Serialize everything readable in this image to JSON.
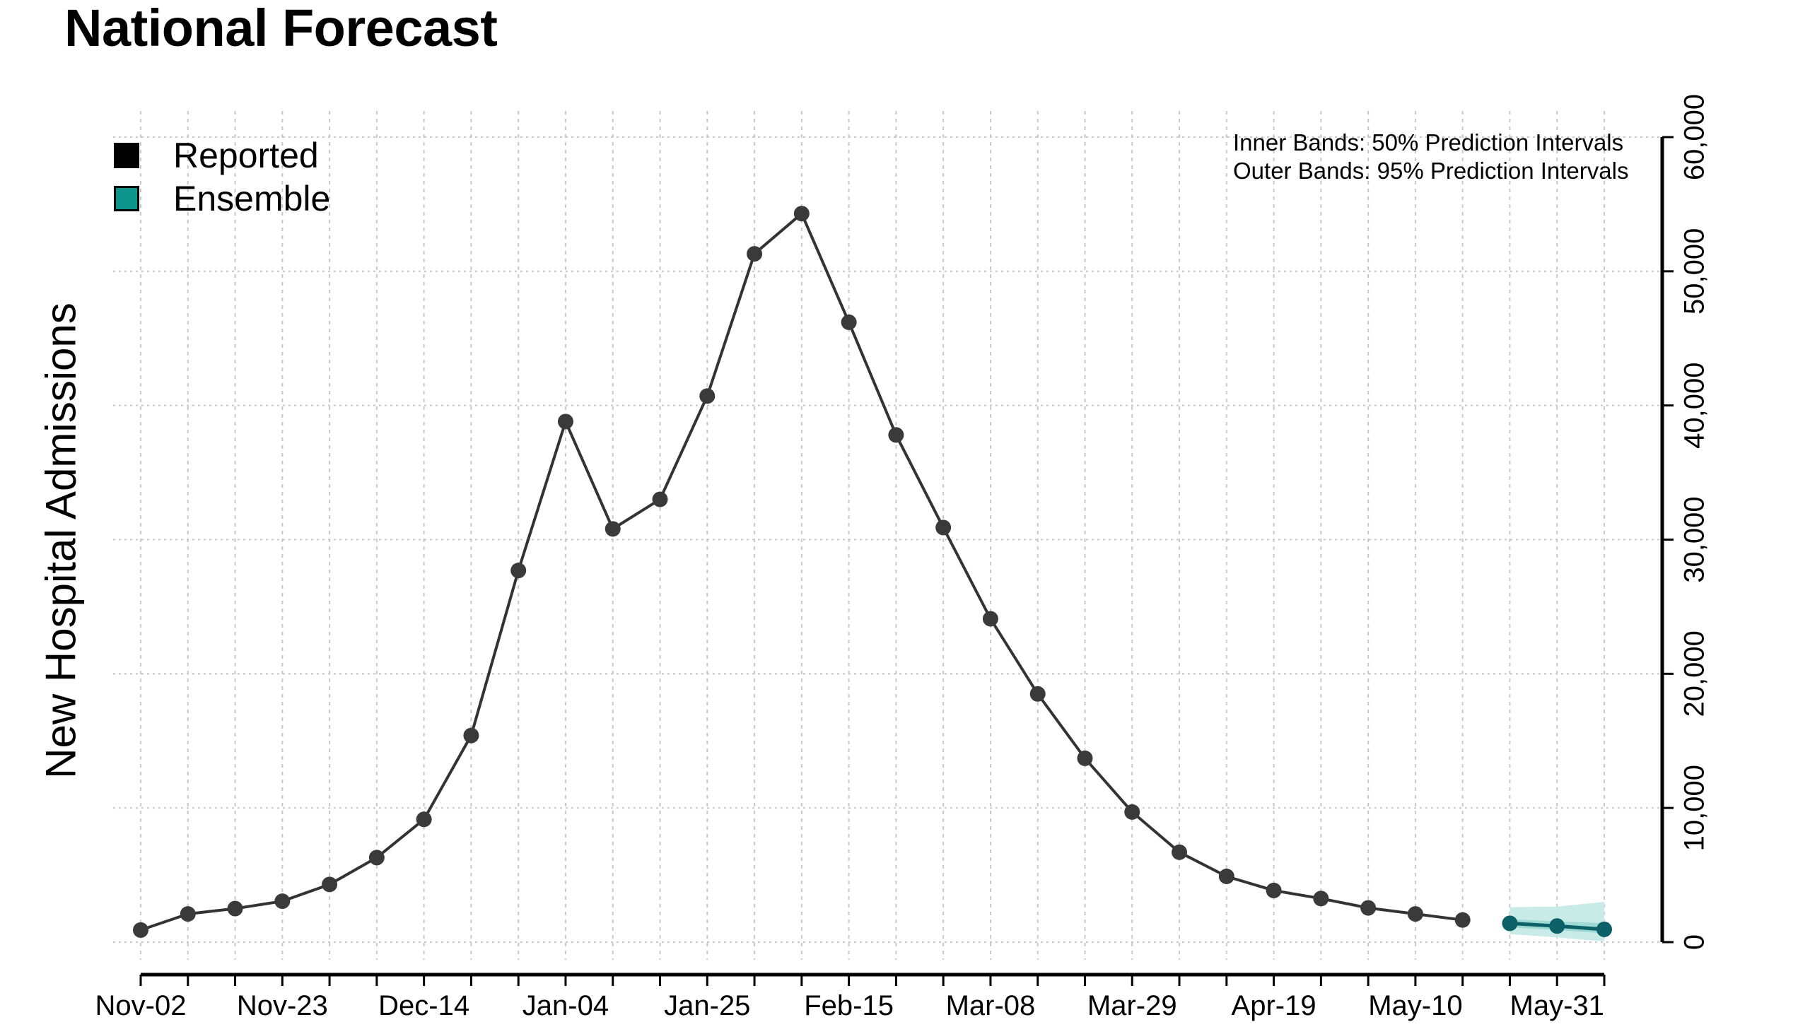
{
  "title": "National Forecast",
  "legend": [
    {
      "label": "Reported",
      "color": "#000000"
    },
    {
      "label": "Ensemble",
      "color": "#0f968c"
    }
  ],
  "annotations": {
    "inner": "Inner Bands: 50% Prediction Intervals",
    "outer": "Outer Bands: 95% Prediction Intervals"
  },
  "colors": {
    "reported_line": "#333333",
    "reported_point": "#3a3a3a",
    "ensemble_line": "#0b6167",
    "ensemble_point": "#0b6167",
    "band_95": "#c8ebe8",
    "band_50": "#9fd9d3",
    "grid": "#c8c8c8"
  },
  "chart_data": {
    "type": "line",
    "title": "National Forecast",
    "xlabel": "",
    "ylabel": "New Hospital Admissions",
    "ylim": [
      0,
      60000
    ],
    "yticks": [
      0,
      10000,
      20000,
      30000,
      40000,
      50000,
      60000
    ],
    "ytick_labels": [
      "0",
      "10,000",
      "20,000",
      "30,000",
      "40,000",
      "50,000",
      "60,000"
    ],
    "y_axis_position": "right",
    "grid": true,
    "legend_position": "top-left",
    "x": [
      "Nov-02",
      "Nov-09",
      "Nov-16",
      "Nov-23",
      "Nov-30",
      "Dec-07",
      "Dec-14",
      "Dec-21",
      "Dec-28",
      "Jan-04",
      "Jan-11",
      "Jan-18",
      "Jan-25",
      "Feb-01",
      "Feb-08",
      "Feb-15",
      "Feb-22",
      "Mar-01",
      "Mar-08",
      "Mar-15",
      "Mar-22",
      "Mar-29",
      "Apr-05",
      "Apr-12",
      "Apr-19",
      "Apr-26",
      "May-03",
      "May-10",
      "May-17",
      "May-24",
      "May-31",
      "Jun-07"
    ],
    "xtick_labels": [
      "Nov-02",
      "",
      "",
      "Nov-23",
      "",
      "",
      "Dec-14",
      "",
      "",
      "Jan-04",
      "",
      "",
      "Jan-25",
      "",
      "",
      "Feb-15",
      "",
      "",
      "Mar-08",
      "",
      "",
      "Mar-29",
      "",
      "",
      "Apr-19",
      "",
      "",
      "May-10",
      "",
      "",
      "May-31",
      ""
    ],
    "series": [
      {
        "name": "Reported",
        "start_index": 0,
        "values": [
          900,
          2100,
          2500,
          3050,
          4300,
          6300,
          9150,
          15400,
          27700,
          38800,
          30800,
          33000,
          40700,
          51300,
          54300,
          46200,
          37800,
          30900,
          24100,
          18500,
          13700,
          9700,
          6700,
          4900,
          3850,
          3250,
          2550,
          2100,
          1650
        ]
      },
      {
        "name": "Ensemble",
        "start_index": 29,
        "values": [
          1400,
          1200,
          950
        ],
        "lower_50": [
          1100,
          900,
          650
        ],
        "upper_50": [
          1700,
          1550,
          1400
        ],
        "lower_95": [
          600,
          350,
          50
        ],
        "upper_95": [
          2600,
          2650,
          3000
        ]
      }
    ]
  }
}
